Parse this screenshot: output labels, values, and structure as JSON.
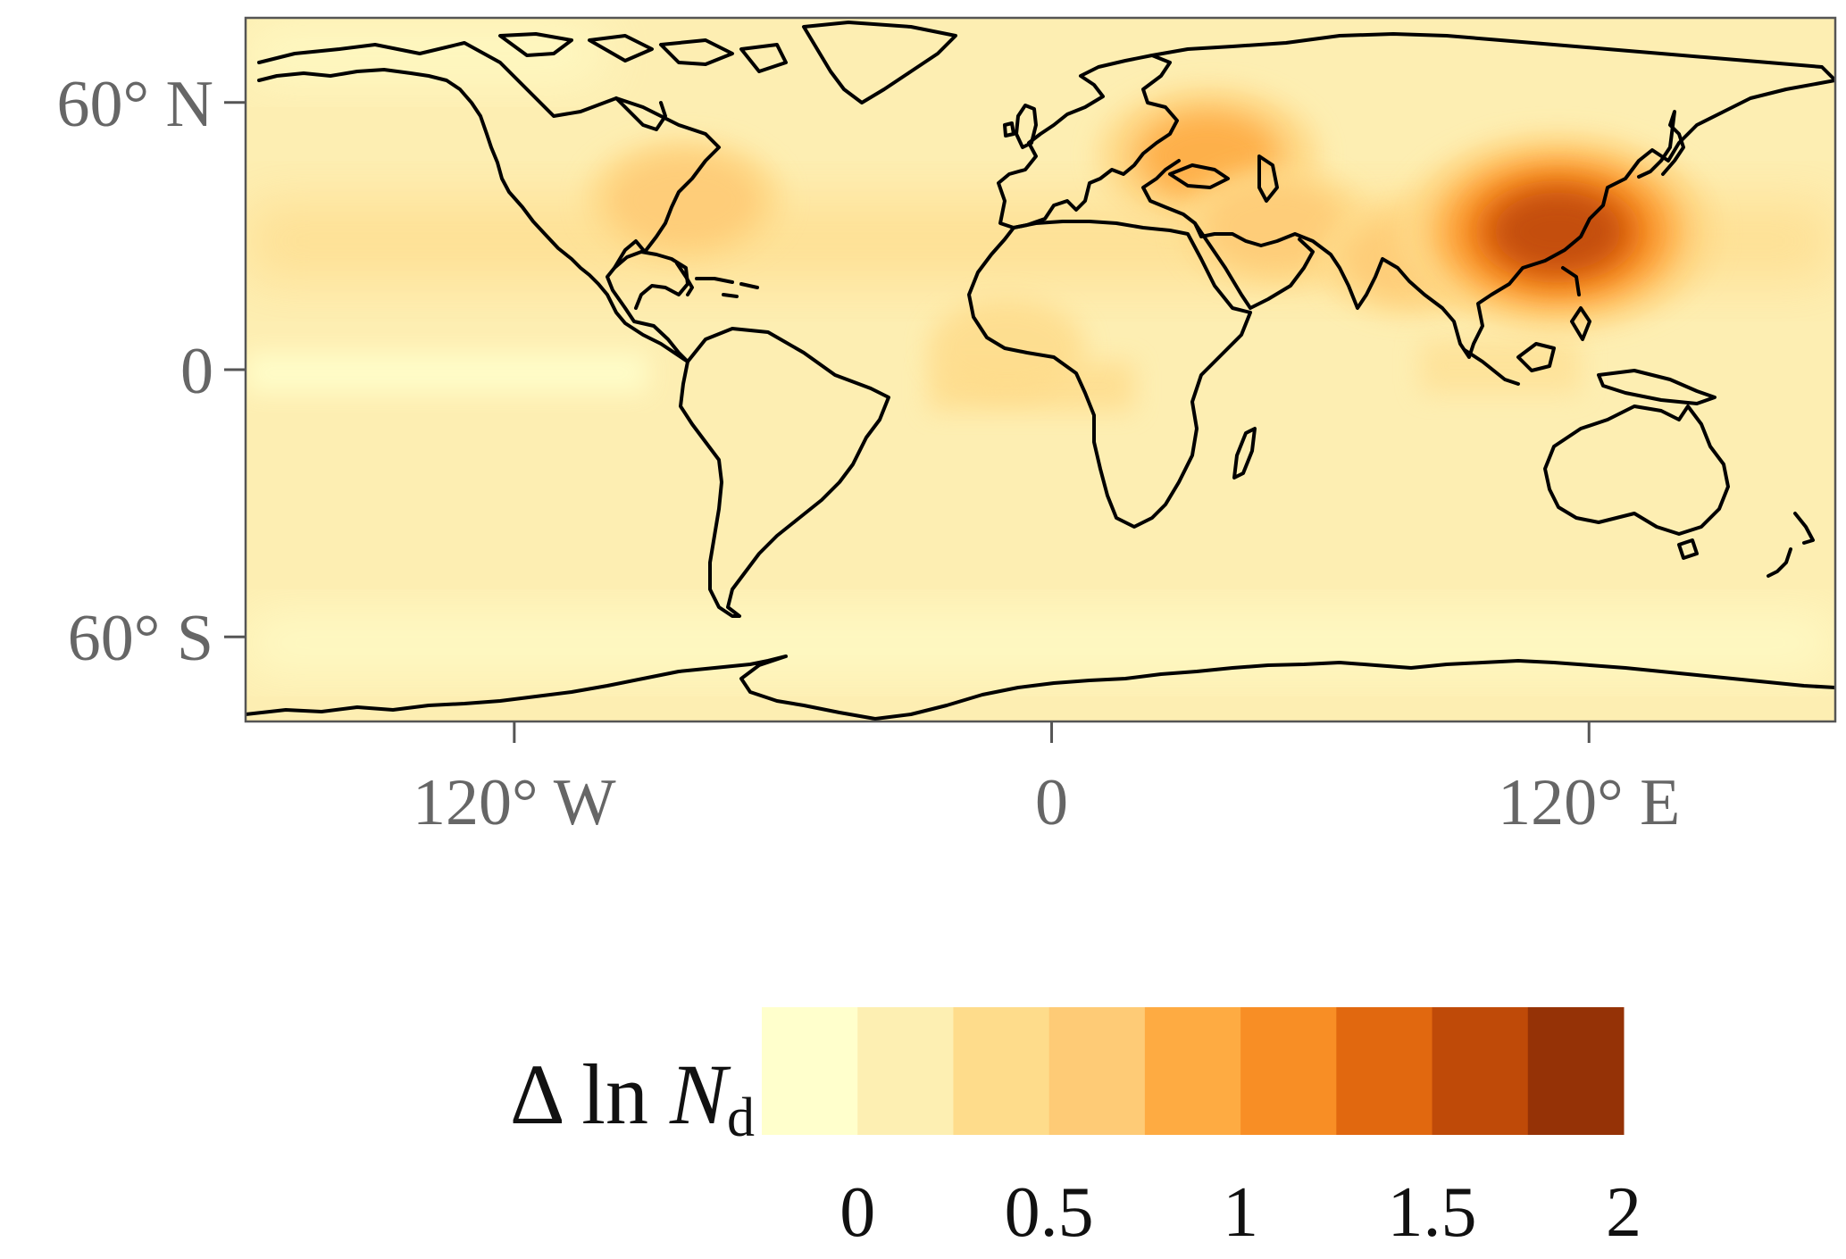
{
  "map": {
    "lat_ticks": [
      {
        "value": 60,
        "label": "60° N"
      },
      {
        "value": 0,
        "label": "0"
      },
      {
        "value": -60,
        "label": "60° S"
      }
    ],
    "lon_ticks": [
      {
        "value": -120,
        "label": "120° W"
      },
      {
        "value": 0,
        "label": "0"
      },
      {
        "value": 120,
        "label": "120° E"
      }
    ],
    "lon_range": [
      -180,
      175
    ],
    "lat_range": [
      -79,
      79
    ],
    "background_color": "#fdeeb2",
    "coastline_color": "#000000",
    "hotspots": [
      {
        "region": "eastern-north-america",
        "lon": -82,
        "lat": 38,
        "level": 0.7
      },
      {
        "region": "europe-western-russia",
        "lon": 35,
        "lat": 48,
        "level": 0.85
      },
      {
        "region": "middle-east",
        "lon": 50,
        "lat": 32,
        "level": 0.65
      },
      {
        "region": "south-asia",
        "lon": 80,
        "lat": 25,
        "level": 0.6
      },
      {
        "region": "east-china",
        "lon": 113,
        "lat": 31,
        "level": 1.6
      },
      {
        "region": "west-african-outflow",
        "lon": -10,
        "lat": 5,
        "level": 0.45
      }
    ]
  },
  "legend": {
    "title_main": "Δ ln ",
    "title_var": "N",
    "title_sub": "d",
    "bins": [
      {
        "color": "#ffffcc"
      },
      {
        "color": "#fdefb2"
      },
      {
        "color": "#fedc8b"
      },
      {
        "color": "#fecb76"
      },
      {
        "color": "#feab42"
      },
      {
        "color": "#f88e25"
      },
      {
        "color": "#e1680f"
      },
      {
        "color": "#bf4a08"
      },
      {
        "color": "#953206"
      }
    ],
    "tick_labels": [
      {
        "value": 0,
        "label": "0"
      },
      {
        "value": 0.5,
        "label": "0.5"
      },
      {
        "value": 1,
        "label": "1"
      },
      {
        "value": 1.5,
        "label": "1.5"
      },
      {
        "value": 2,
        "label": "2"
      }
    ],
    "range": [
      -0.25,
      2
    ]
  }
}
